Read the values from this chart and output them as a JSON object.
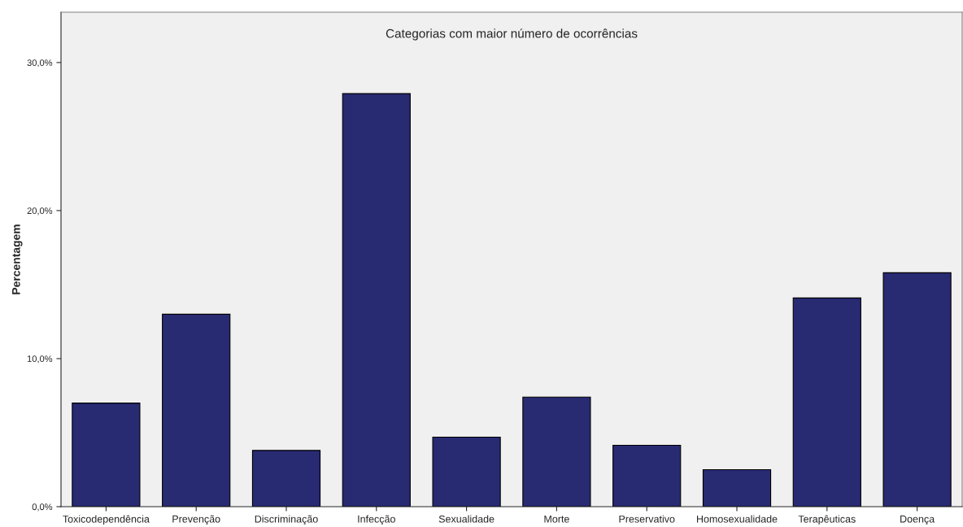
{
  "chart_data": {
    "type": "bar",
    "title": "Categorias com maior número de ocorrências",
    "ylabel": "Percentagem",
    "categories": [
      "Toxicodependência",
      "Prevenção",
      "Discriminação",
      "Infecção",
      "Sexualidade",
      "Morte",
      "Preservativo",
      "Homosexualidade",
      "Terapêuticas",
      "Doença"
    ],
    "values": [
      7.0,
      13.0,
      3.8,
      27.9,
      4.7,
      7.4,
      4.15,
      2.5,
      14.1,
      15.8
    ],
    "color": "#282a72",
    "ylim": [
      0,
      33.4
    ],
    "yticks": [
      {
        "value": 0,
        "label": "0,0%"
      },
      {
        "value": 10,
        "label": "10,0%"
      },
      {
        "value": 20,
        "label": "20,0%"
      },
      {
        "value": 30,
        "label": "30,0%"
      }
    ],
    "grid": false
  }
}
